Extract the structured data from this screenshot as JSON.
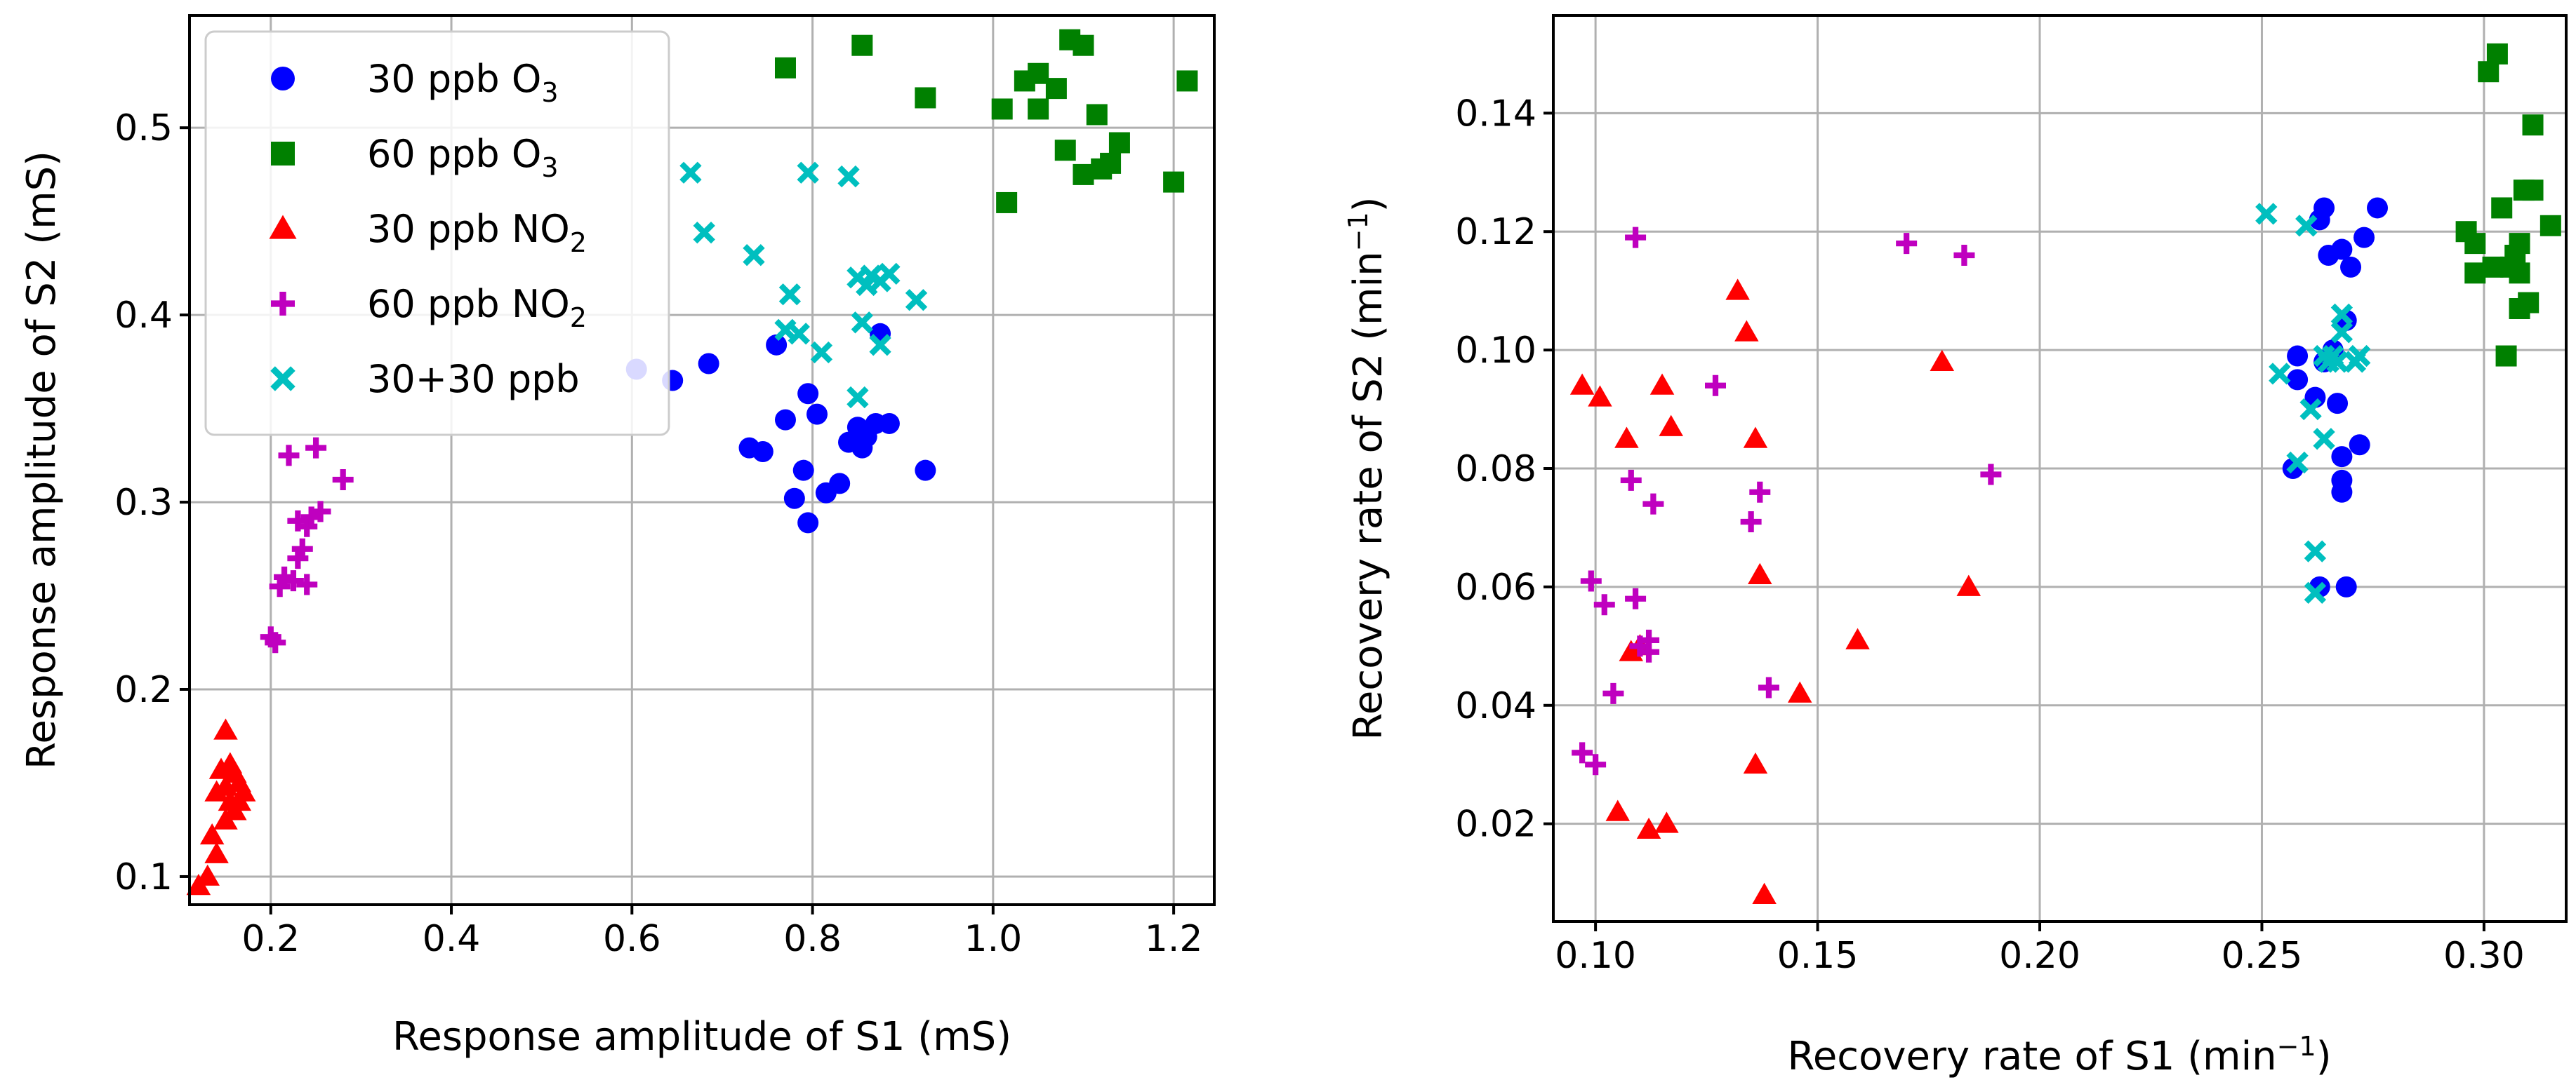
{
  "chart_data": [
    {
      "type": "scatter",
      "xlabel": "Response amplitude of S1 (mS)",
      "ylabel": "Response amplitude of S2 (mS)",
      "xlim": [
        0.11,
        1.245
      ],
      "ylim": [
        0.085,
        0.56
      ],
      "xticks": [
        0.2,
        0.4,
        0.6,
        0.8,
        1.0,
        1.2
      ],
      "xtick_labels": [
        "0.2",
        "0.4",
        "0.6",
        "0.8",
        "1.0",
        "1.2"
      ],
      "yticks": [
        0.1,
        0.2,
        0.3,
        0.4,
        0.5
      ],
      "ytick_labels": [
        "0.1",
        "0.2",
        "0.3",
        "0.4",
        "0.5"
      ],
      "grid": true,
      "legend_position": "top-left",
      "series": [
        {
          "name": "30 ppb O",
          "sub": "3",
          "marker": "circle",
          "color": "#0000ff",
          "points": [
            [
              0.605,
              0.371
            ],
            [
              0.645,
              0.365
            ],
            [
              0.685,
              0.374
            ],
            [
              0.73,
              0.329
            ],
            [
              0.745,
              0.327
            ],
            [
              0.76,
              0.384
            ],
            [
              0.77,
              0.344
            ],
            [
              0.78,
              0.302
            ],
            [
              0.79,
              0.317
            ],
            [
              0.795,
              0.358
            ],
            [
              0.795,
              0.289
            ],
            [
              0.805,
              0.347
            ],
            [
              0.815,
              0.305
            ],
            [
              0.83,
              0.31
            ],
            [
              0.84,
              0.332
            ],
            [
              0.85,
              0.34
            ],
            [
              0.855,
              0.329
            ],
            [
              0.86,
              0.335
            ],
            [
              0.87,
              0.342
            ],
            [
              0.875,
              0.39
            ],
            [
              0.885,
              0.342
            ],
            [
              0.925,
              0.317
            ]
          ]
        },
        {
          "name": "60 ppb O",
          "sub": "3",
          "marker": "square",
          "color": "#008000",
          "points": [
            [
              0.77,
              0.532
            ],
            [
              0.855,
              0.544
            ],
            [
              0.925,
              0.516
            ],
            [
              1.01,
              0.51
            ],
            [
              1.015,
              0.46
            ],
            [
              1.035,
              0.525
            ],
            [
              1.05,
              0.529
            ],
            [
              1.05,
              0.51
            ],
            [
              1.07,
              0.521
            ],
            [
              1.08,
              0.488
            ],
            [
              1.085,
              0.547
            ],
            [
              1.1,
              0.544
            ],
            [
              1.1,
              0.475
            ],
            [
              1.115,
              0.507
            ],
            [
              1.12,
              0.478
            ],
            [
              1.13,
              0.481
            ],
            [
              1.14,
              0.492
            ],
            [
              1.2,
              0.471
            ],
            [
              1.215,
              0.525
            ]
          ]
        },
        {
          "name": "30 ppb NO",
          "sub": "2",
          "marker": "triangle",
          "color": "#ff0000",
          "points": [
            [
              0.12,
              0.095
            ],
            [
              0.13,
              0.1
            ],
            [
              0.135,
              0.122
            ],
            [
              0.14,
              0.112
            ],
            [
              0.14,
              0.145
            ],
            [
              0.145,
              0.157
            ],
            [
              0.15,
              0.178
            ],
            [
              0.15,
              0.148
            ],
            [
              0.15,
              0.13
            ],
            [
              0.155,
              0.16
            ],
            [
              0.155,
              0.14
            ],
            [
              0.16,
              0.155
            ],
            [
              0.16,
              0.135
            ],
            [
              0.165,
              0.15
            ],
            [
              0.165,
              0.14
            ],
            [
              0.17,
              0.145
            ]
          ]
        },
        {
          "name": "60 ppb NO",
          "sub": "2",
          "marker": "plus",
          "color": "#bf00bf",
          "points": [
            [
              0.2,
              0.228
            ],
            [
              0.205,
              0.225
            ],
            [
              0.21,
              0.255
            ],
            [
              0.215,
              0.26
            ],
            [
              0.22,
              0.325
            ],
            [
              0.225,
              0.258
            ],
            [
              0.23,
              0.27
            ],
            [
              0.23,
              0.29
            ],
            [
              0.235,
              0.275
            ],
            [
              0.24,
              0.287
            ],
            [
              0.24,
              0.256
            ],
            [
              0.245,
              0.292
            ],
            [
              0.25,
              0.329
            ],
            [
              0.255,
              0.295
            ],
            [
              0.28,
              0.312
            ]
          ]
        },
        {
          "name": "30+30 ppb",
          "sub": "",
          "marker": "x",
          "color": "#00bfbf",
          "points": [
            [
              0.665,
              0.476
            ],
            [
              0.68,
              0.444
            ],
            [
              0.735,
              0.432
            ],
            [
              0.77,
              0.392
            ],
            [
              0.775,
              0.411
            ],
            [
              0.785,
              0.39
            ],
            [
              0.795,
              0.476
            ],
            [
              0.81,
              0.38
            ],
            [
              0.84,
              0.474
            ],
            [
              0.85,
              0.356
            ],
            [
              0.85,
              0.42
            ],
            [
              0.855,
              0.396
            ],
            [
              0.86,
              0.416
            ],
            [
              0.865,
              0.421
            ],
            [
              0.875,
              0.384
            ],
            [
              0.875,
              0.418
            ],
            [
              0.885,
              0.422
            ],
            [
              0.915,
              0.408
            ]
          ]
        }
      ]
    },
    {
      "type": "scatter",
      "xlabel": "Recovery rate of S1 (min",
      "xlabel_sup": "−1",
      "xlabel_end": ")",
      "ylabel": "Recovery rate of S2 (min",
      "ylabel_sup": "−1",
      "ylabel_end": ")",
      "xlim": [
        0.0905,
        0.3185
      ],
      "ylim": [
        0.0035,
        0.1565
      ],
      "xticks": [
        0.1,
        0.15,
        0.2,
        0.25,
        0.3
      ],
      "xtick_labels": [
        "0.10",
        "0.15",
        "0.20",
        "0.25",
        "0.30"
      ],
      "yticks": [
        0.02,
        0.04,
        0.06,
        0.08,
        0.1,
        0.12,
        0.14
      ],
      "ytick_labels": [
        "0.02",
        "0.04",
        "0.06",
        "0.08",
        "0.10",
        "0.12",
        "0.14"
      ],
      "grid": true,
      "series": [
        {
          "name": "30 ppb O3",
          "marker": "circle",
          "color": "#0000ff",
          "points": [
            [
              0.257,
              0.08
            ],
            [
              0.258,
              0.095
            ],
            [
              0.258,
              0.099
            ],
            [
              0.262,
              0.092
            ],
            [
              0.263,
              0.122
            ],
            [
              0.263,
              0.06
            ],
            [
              0.264,
              0.124
            ],
            [
              0.264,
              0.098
            ],
            [
              0.265,
              0.116
            ],
            [
              0.266,
              0.1
            ],
            [
              0.267,
              0.091
            ],
            [
              0.268,
              0.082
            ],
            [
              0.268,
              0.078
            ],
            [
              0.268,
              0.076
            ],
            [
              0.268,
              0.117
            ],
            [
              0.269,
              0.105
            ],
            [
              0.269,
              0.06
            ],
            [
              0.27,
              0.114
            ],
            [
              0.272,
              0.084
            ],
            [
              0.273,
              0.119
            ],
            [
              0.276,
              0.124
            ]
          ]
        },
        {
          "name": "60 ppb O3",
          "marker": "square",
          "color": "#008000",
          "points": [
            [
              0.296,
              0.12
            ],
            [
              0.298,
              0.118
            ],
            [
              0.298,
              0.113
            ],
            [
              0.301,
              0.147
            ],
            [
              0.302,
              0.114
            ],
            [
              0.303,
              0.15
            ],
            [
              0.304,
              0.124
            ],
            [
              0.305,
              0.099
            ],
            [
              0.306,
              0.114
            ],
            [
              0.307,
              0.116
            ],
            [
              0.308,
              0.118
            ],
            [
              0.308,
              0.113
            ],
            [
              0.308,
              0.107
            ],
            [
              0.309,
              0.127
            ],
            [
              0.31,
              0.108
            ],
            [
              0.311,
              0.138
            ],
            [
              0.311,
              0.127
            ],
            [
              0.315,
              0.121
            ]
          ]
        },
        {
          "name": "30 ppb NO2",
          "marker": "triangle",
          "color": "#ff0000",
          "points": [
            [
              0.097,
              0.094
            ],
            [
              0.101,
              0.092
            ],
            [
              0.105,
              0.022
            ],
            [
              0.107,
              0.085
            ],
            [
              0.108,
              0.049
            ],
            [
              0.11,
              0.05
            ],
            [
              0.112,
              0.019
            ],
            [
              0.115,
              0.094
            ],
            [
              0.116,
              0.02
            ],
            [
              0.117,
              0.087
            ],
            [
              0.132,
              0.11
            ],
            [
              0.134,
              0.103
            ],
            [
              0.136,
              0.085
            ],
            [
              0.136,
              0.03
            ],
            [
              0.137,
              0.062
            ],
            [
              0.138,
              0.008
            ],
            [
              0.146,
              0.042
            ],
            [
              0.159,
              0.051
            ],
            [
              0.178,
              0.098
            ],
            [
              0.184,
              0.06
            ]
          ]
        },
        {
          "name": "60 ppb NO2",
          "marker": "plus",
          "color": "#bf00bf",
          "points": [
            [
              0.097,
              0.032
            ],
            [
              0.099,
              0.061
            ],
            [
              0.1,
              0.03
            ],
            [
              0.102,
              0.057
            ],
            [
              0.104,
              0.042
            ],
            [
              0.108,
              0.078
            ],
            [
              0.109,
              0.119
            ],
            [
              0.109,
              0.058
            ],
            [
              0.11,
              0.05
            ],
            [
              0.112,
              0.051
            ],
            [
              0.112,
              0.049
            ],
            [
              0.113,
              0.074
            ],
            [
              0.127,
              0.094
            ],
            [
              0.135,
              0.071
            ],
            [
              0.137,
              0.076
            ],
            [
              0.139,
              0.043
            ],
            [
              0.17,
              0.118
            ],
            [
              0.183,
              0.116
            ],
            [
              0.189,
              0.079
            ]
          ]
        },
        {
          "name": "30+30 ppb",
          "marker": "x",
          "color": "#00bfbf",
          "points": [
            [
              0.251,
              0.123
            ],
            [
              0.254,
              0.096
            ],
            [
              0.258,
              0.081
            ],
            [
              0.26,
              0.121
            ],
            [
              0.261,
              0.09
            ],
            [
              0.262,
              0.066
            ],
            [
              0.262,
              0.059
            ],
            [
              0.264,
              0.085
            ],
            [
              0.264,
              0.099
            ],
            [
              0.265,
              0.098
            ],
            [
              0.266,
              0.099
            ],
            [
              0.267,
              0.098
            ],
            [
              0.268,
              0.106
            ],
            [
              0.268,
              0.103
            ],
            [
              0.271,
              0.098
            ],
            [
              0.272,
              0.099
            ]
          ]
        }
      ]
    }
  ]
}
